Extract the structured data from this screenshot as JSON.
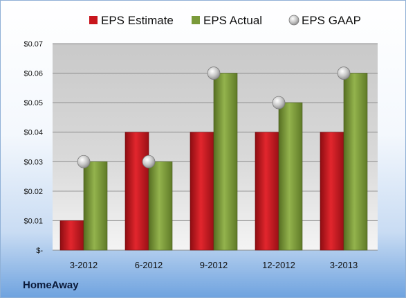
{
  "company": "HomeAway",
  "chart_data": {
    "type": "bar",
    "categories": [
      "3-2012",
      "6-2012",
      "9-2012",
      "12-2012",
      "3-2013"
    ],
    "series": [
      {
        "name": "EPS Estimate",
        "kind": "bar",
        "color": "#c8161d",
        "values": [
          0.01,
          0.04,
          0.04,
          0.04,
          0.04
        ]
      },
      {
        "name": "EPS Actual",
        "kind": "bar",
        "color": "#7a9a3a",
        "values": [
          0.03,
          0.03,
          0.06,
          0.05,
          0.06
        ]
      },
      {
        "name": "EPS GAAP",
        "kind": "marker",
        "color": "#a8a8a8",
        "values": [
          0.03,
          0.03,
          0.06,
          0.05,
          0.06
        ]
      }
    ],
    "y_ticks": [
      "$-",
      "$0.01",
      "$0.02",
      "$0.03",
      "$0.04",
      "$0.05",
      "$0.06",
      "$0.07"
    ],
    "ylim": [
      0,
      0.07
    ],
    "grid": true,
    "legend_position": "top"
  }
}
